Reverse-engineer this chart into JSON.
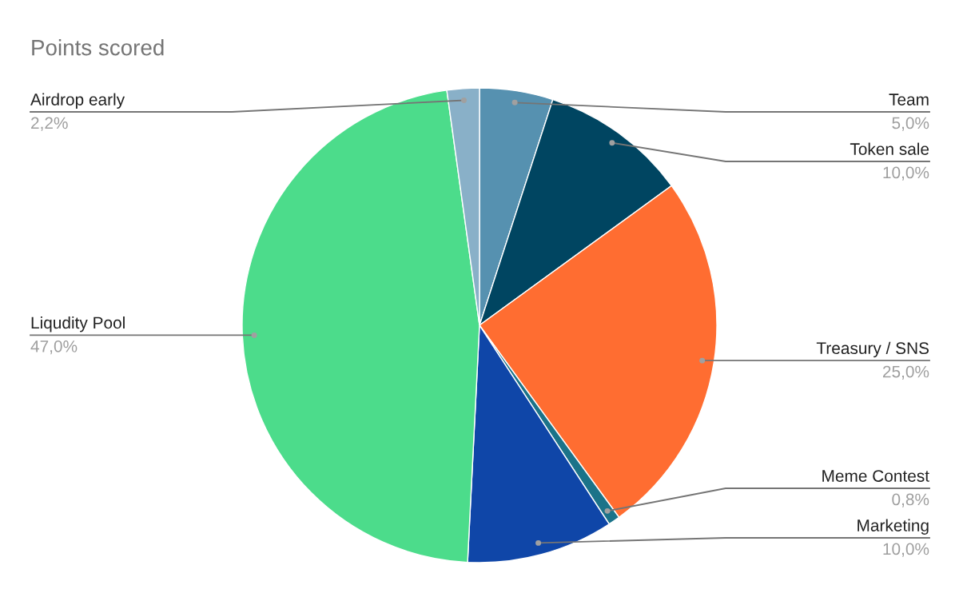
{
  "chart_data": {
    "type": "pie",
    "title": "Points scored",
    "categories": [
      "Team",
      "Token sale",
      "Treasury / SNS",
      "Meme Contest",
      "Marketing",
      "Liqudity Pool",
      "Airdrop early"
    ],
    "values": [
      5.0,
      10.0,
      25.0,
      0.8,
      10.0,
      47.0,
      2.2
    ],
    "value_labels": [
      "5,0%",
      "10,0%",
      "25,0%",
      "0,8%",
      "10,0%",
      "47,0%",
      "2,2%"
    ],
    "colors": [
      "#5691b0",
      "#004561",
      "#ff6d31",
      "#1b7389",
      "#0f46a8",
      "#4cdc8b",
      "#89b0c8"
    ]
  }
}
